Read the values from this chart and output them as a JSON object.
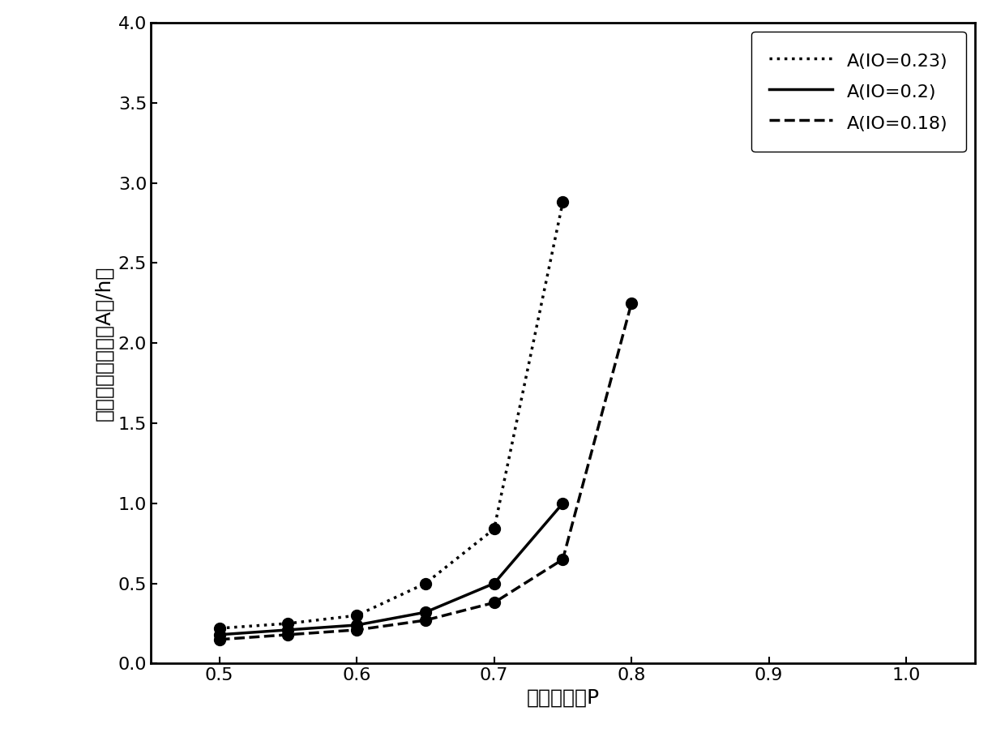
{
  "series": [
    {
      "label": "A(IO=0.23)",
      "linestyle": "dotted",
      "marker": "o",
      "x": [
        0.5,
        0.55,
        0.6,
        0.65,
        0.7,
        0.75
      ],
      "y": [
        0.22,
        0.25,
        0.3,
        0.5,
        0.84,
        2.88
      ]
    },
    {
      "label": "A(IO=0.2)",
      "linestyle": "solid",
      "marker": "o",
      "x": [
        0.5,
        0.55,
        0.6,
        0.65,
        0.7,
        0.75
      ],
      "y": [
        0.18,
        0.21,
        0.24,
        0.32,
        0.5,
        1.0
      ]
    },
    {
      "label": "A(IO=0.18)",
      "linestyle": "dashed",
      "marker": "o",
      "x": [
        0.5,
        0.55,
        0.6,
        0.65,
        0.7,
        0.75,
        0.8
      ],
      "y": [
        0.15,
        0.18,
        0.21,
        0.27,
        0.38,
        0.65,
        2.25
      ]
    }
  ],
  "xlabel": "过滤器效率P",
  "ylabel": "允许最大换气次数A（/h）",
  "xlim": [
    0.45,
    1.05
  ],
  "ylim": [
    0.0,
    4.0
  ],
  "xticks": [
    0.5,
    0.6,
    0.7,
    0.8,
    0.9,
    1.0
  ],
  "yticks": [
    0.0,
    0.5,
    1.0,
    1.5,
    2.0,
    2.5,
    3.0,
    3.5,
    4.0
  ],
  "xtick_labels": [
    "0.5",
    "0.6",
    "0.7",
    "0.8",
    "0.9",
    "1.0"
  ],
  "ytick_labels": [
    "0.0",
    "0.5",
    "1.0",
    "1.5",
    "2.0",
    "2.5",
    "3.0",
    "3.5",
    "4.0"
  ],
  "line_color": "#000000",
  "linewidth": 2.5,
  "markersize": 10,
  "legend_fontsize": 16,
  "axis_fontsize": 18,
  "tick_fontsize": 16,
  "background_color": "#ffffff"
}
